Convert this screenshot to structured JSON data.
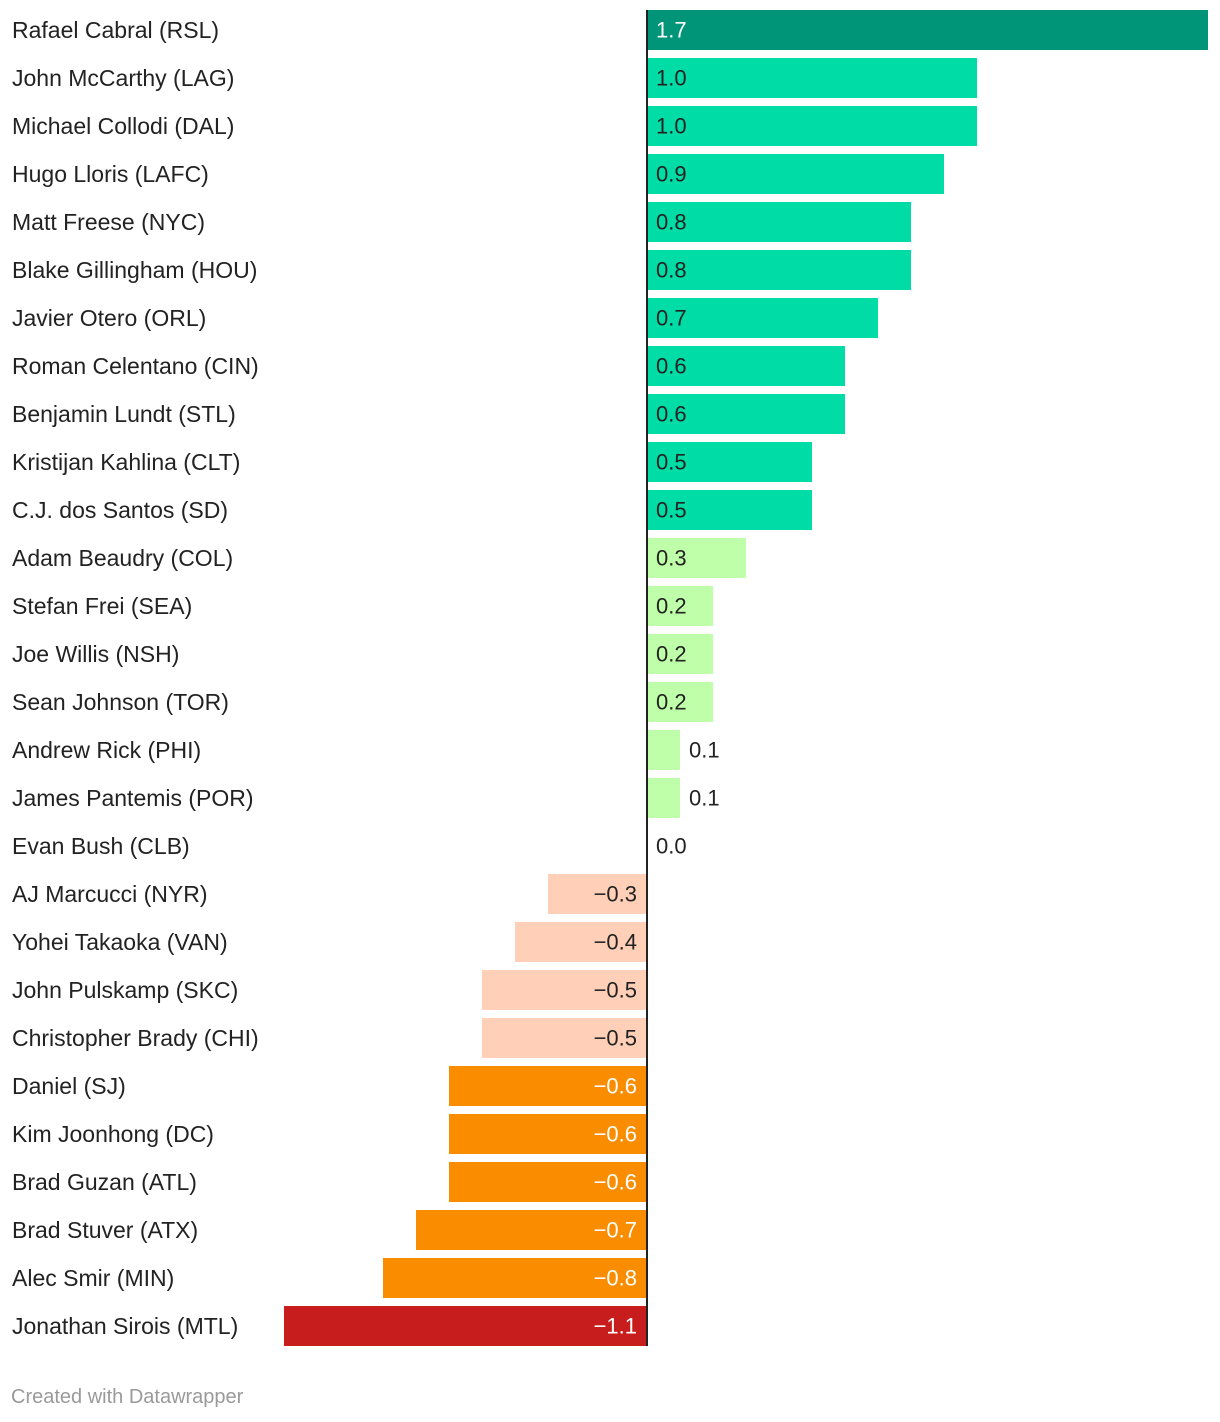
{
  "chart_data": {
    "type": "bar",
    "orientation": "horizontal",
    "categories": [
      "Rafael Cabral (RSL)",
      "John McCarthy (LAG)",
      "Michael Collodi (DAL)",
      "Hugo Lloris (LAFC)",
      "Matt Freese (NYC)",
      "Blake Gillingham (HOU)",
      "Javier Otero (ORL)",
      "Roman Celentano (CIN)",
      "Benjamin Lundt (STL)",
      "Kristijan Kahlina (CLT)",
      "C.J. dos Santos (SD)",
      "Adam Beaudry (COL)",
      "Stefan Frei (SEA)",
      "Joe Willis (NSH)",
      "Sean Johnson (TOR)",
      "Andrew Rick (PHI)",
      "James Pantemis (POR)",
      "Evan Bush (CLB)",
      "AJ Marcucci (NYR)",
      "Yohei Takaoka (VAN)",
      "John Pulskamp (SKC)",
      "Christopher Brady (CHI)",
      "Daniel (SJ)",
      "Kim Joonhong (DC)",
      "Brad Guzan (ATL)",
      "Brad Stuver (ATX)",
      "Alec Smir (MIN)",
      "Jonathan Sirois (MTL)"
    ],
    "values": [
      1.7,
      1.0,
      1.0,
      0.9,
      0.8,
      0.8,
      0.7,
      0.6,
      0.6,
      0.5,
      0.5,
      0.3,
      0.2,
      0.2,
      0.2,
      0.1,
      0.1,
      0.0,
      -0.3,
      -0.4,
      -0.5,
      -0.5,
      -0.6,
      -0.6,
      -0.6,
      -0.7,
      -0.8,
      -1.1
    ],
    "labels": [
      "1.7",
      "1.0",
      "1.0",
      "0.9",
      "0.8",
      "0.8",
      "0.7",
      "0.6",
      "0.6",
      "0.5",
      "0.5",
      "0.3",
      "0.2",
      "0.2",
      "0.2",
      "0.1",
      "0.1",
      "0.0",
      "−0.3",
      "−0.4",
      "−0.5",
      "−0.5",
      "−0.6",
      "−0.6",
      "−0.6",
      "−0.7",
      "−0.8",
      "−1.1"
    ],
    "colors": [
      "#009479",
      "#00dca5",
      "#00dca5",
      "#00dca5",
      "#00dca5",
      "#00dca5",
      "#00dca5",
      "#00dca5",
      "#00dca5",
      "#00dca5",
      "#00dca5",
      "#bfffaa",
      "#bfffaa",
      "#bfffaa",
      "#bfffaa",
      "#bfffaa",
      "#bfffaa",
      "#bfffaa",
      "#ffcfb8",
      "#ffcfb8",
      "#ffcfb8",
      "#ffcfb8",
      "#fa8c00",
      "#fa8c00",
      "#fa8c00",
      "#fa8c00",
      "#fa8c00",
      "#c71e1d"
    ],
    "label_colors": [
      "#ffffff",
      "#222222",
      "#222222",
      "#222222",
      "#222222",
      "#222222",
      "#222222",
      "#222222",
      "#222222",
      "#222222",
      "#222222",
      "#222222",
      "#222222",
      "#222222",
      "#222222",
      "#222222",
      "#222222",
      "#222222",
      "#222222",
      "#222222",
      "#222222",
      "#222222",
      "#ffffff",
      "#ffffff",
      "#ffffff",
      "#ffffff",
      "#ffffff",
      "#ffffff"
    ],
    "xlim": [
      -1.1,
      1.7
    ],
    "title": "",
    "xlabel": "",
    "ylabel": "",
    "grid": false,
    "legend": "none"
  },
  "footer": {
    "credit": "Created with Datawrapper"
  },
  "colors": {
    "axis": "#222222",
    "row_label": "#222222",
    "credit": "#9a9a9a"
  }
}
